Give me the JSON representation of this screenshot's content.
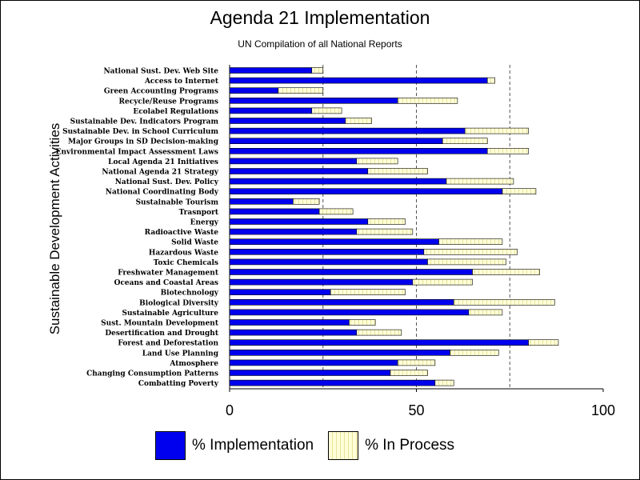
{
  "chart_data": {
    "type": "bar",
    "orientation": "horizontal",
    "stacked": true,
    "title": "Agenda 21 Implementation",
    "subtitle": "UN Compilation of all National Reports",
    "ylabel": "Sustainable Development Activities",
    "xlabel": "",
    "xlim": [
      0,
      100
    ],
    "xticks": [
      0,
      50,
      100
    ],
    "gridlines": [
      25,
      50,
      75
    ],
    "categories": [
      "National Sust. Dev. Web Site",
      "Access to Internet",
      "Green Accounting Programs",
      "Recycle/Reuse Programs",
      "Ecolabel Regulations",
      "Sustainable Dev. Indicators Program",
      "Sustainable Dev. in School Curriculum",
      "Major Groups in SD Decision-making",
      "Environmental Impact Assessment Laws",
      "Local Agenda 21 Initiatives",
      "National Agenda 21 Strategy",
      "National Sust. Dev. Policy",
      "National Coordinating Body",
      "Sustainable Tourism",
      "Trasnport",
      "Energy",
      "Radioactive Waste",
      "Solid Waste",
      "Hazardous Waste",
      "Toxic Chemicals",
      "Freshwater Management",
      "Oceans and Coastal Areas",
      "Biotechnology",
      "Biological Diversity",
      "Sustainable  Agriculture",
      "Sust. Mountain Development",
      "Desertification and Drought",
      "Forest and Deforestation",
      "Land Use Planning",
      "Atmosphere",
      "Changing Consumption Patterns",
      "Combatting Poverty"
    ],
    "series": [
      {
        "name": "% Implementation",
        "color": "#0000ee",
        "values": [
          22,
          69,
          13,
          45,
          22,
          31,
          63,
          57,
          69,
          34,
          37,
          58,
          73,
          17,
          24,
          37,
          34,
          56,
          52,
          53,
          65,
          49,
          27,
          60,
          64,
          32,
          34,
          80,
          59,
          45,
          43,
          55
        ]
      },
      {
        "name": "% In Process",
        "color": "#ffffd8",
        "values": [
          3,
          2,
          12,
          16,
          8,
          7,
          17,
          12,
          11,
          11,
          16,
          18,
          9,
          7,
          9,
          10,
          15,
          17,
          25,
          21,
          18,
          16,
          20,
          27,
          9,
          7,
          12,
          8,
          13,
          10,
          10,
          5
        ]
      }
    ]
  }
}
